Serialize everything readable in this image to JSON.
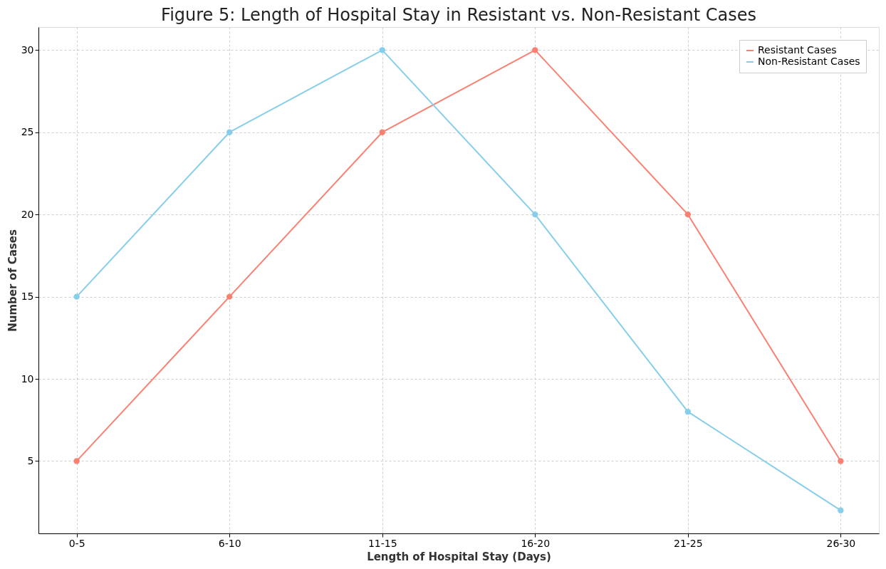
{
  "chart_data": {
    "type": "line",
    "title": "Figure 5: Length of Hospital Stay in Resistant vs. Non-Resistant Cases",
    "xlabel": "Length of Hospital Stay (Days)",
    "ylabel": "Number of Cases",
    "categories": [
      "0-5",
      "6-10",
      "11-15",
      "16-20",
      "21-25",
      "26-30"
    ],
    "series": [
      {
        "name": "Resistant Cases",
        "color": "#fa8072",
        "values": [
          5,
          15,
          25,
          30,
          20,
          5
        ]
      },
      {
        "name": "Non-Resistant Cases",
        "color": "#87ceeb",
        "values": [
          15,
          25,
          30,
          20,
          8,
          2
        ]
      }
    ],
    "ylim": [
      0.6,
      31.4
    ],
    "yticks": [
      5,
      10,
      15,
      20,
      25,
      30
    ],
    "grid": true,
    "legend": "top right",
    "marker": "circle",
    "line_style": "solid"
  }
}
